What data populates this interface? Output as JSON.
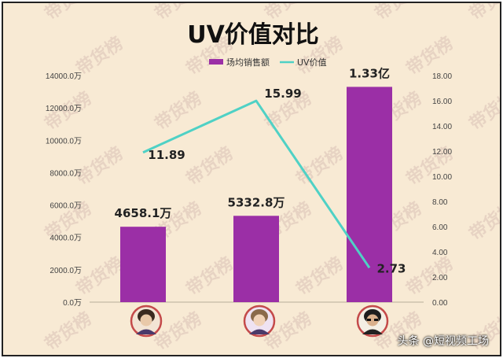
{
  "chart_data": {
    "type": "bar",
    "title": "UV价值对比",
    "categories": [
      "",
      "",
      ""
    ],
    "series": [
      {
        "name": "场均销售额",
        "kind": "bar",
        "axis": "left",
        "color": "#9b2fa6",
        "values": [
          4658.1,
          5332.8,
          13300
        ],
        "labels": [
          "4658.1万",
          "5332.8万",
          "1.33亿"
        ]
      },
      {
        "name": "UV价值",
        "kind": "line",
        "axis": "right",
        "color": "#4fd1c5",
        "values": [
          11.89,
          15.99,
          2.73
        ],
        "labels": [
          "11.89",
          "15.99",
          "2.73"
        ]
      }
    ],
    "y_left": {
      "range": [
        0,
        14000
      ],
      "ticks": [
        "0.0万",
        "2000.0万",
        "4000.0万",
        "6000.0万",
        "8000.0万",
        "10000.0万",
        "12000.0万",
        "14000.0万"
      ]
    },
    "y_right": {
      "range": [
        0,
        18
      ],
      "ticks": [
        "0.00",
        "2.00",
        "4.00",
        "6.00",
        "8.00",
        "10.00",
        "12.00",
        "14.00",
        "16.00",
        "18.00"
      ]
    },
    "legend_position": "top-center",
    "grid": false
  },
  "watermark": "带货榜",
  "footer": {
    "credit": "头条 @短视频工场"
  },
  "avatars": [
    "avatar-1",
    "avatar-2",
    "avatar-3"
  ]
}
